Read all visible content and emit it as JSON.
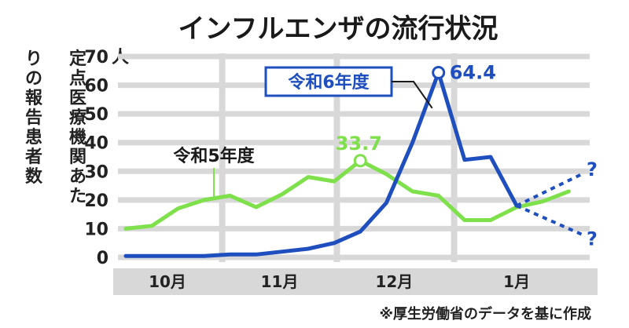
{
  "chart_data": {
    "type": "line",
    "title": "インフルエンザの流行状況",
    "ylabel": "定点医療機関あたりの報告患者数",
    "yunit": "人",
    "ylim": [
      0,
      70
    ],
    "yticks": [
      0,
      10,
      20,
      30,
      40,
      50,
      60,
      70
    ],
    "months": [
      "10月",
      "11月",
      "12月",
      "1月"
    ],
    "grid": true,
    "series": [
      {
        "name": "令和5年度",
        "color": "#7ee04a",
        "values": [
          10,
          11,
          17,
          20,
          21.5,
          17.5,
          22,
          28,
          26.5,
          33.7,
          29,
          23,
          21.5,
          13,
          13,
          17.5,
          19.5,
          23
        ],
        "peak_label": "33.7"
      },
      {
        "name": "令和6年度",
        "color": "#1f4fbf",
        "values": [
          0.5,
          0.5,
          0.5,
          0.5,
          1,
          1,
          2,
          3,
          5,
          9,
          19,
          40,
          64.4,
          34,
          35,
          18
        ],
        "peak_label": "64.4",
        "projection": {
          "up": [
            [
              15,
              18
            ],
            [
              17.5,
              29
            ]
          ],
          "down": [
            [
              15,
              18
            ],
            [
              17.5,
              8
            ]
          ],
          "labels": [
            "?",
            "?"
          ]
        }
      }
    ],
    "source": "※厚生労働省のデータを基に作成"
  },
  "colors": {
    "grid_band": "#d8d8d8",
    "axis_band": "#cfcfcf"
  }
}
